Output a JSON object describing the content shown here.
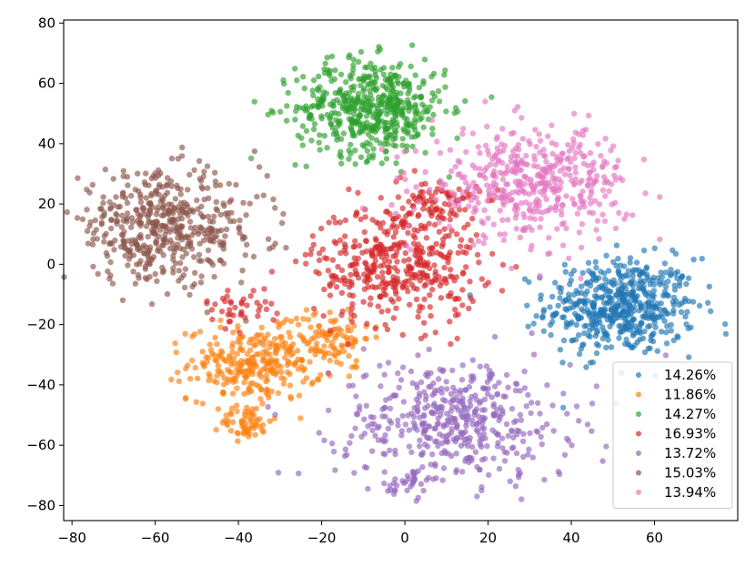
{
  "chart_data": {
    "type": "scatter",
    "title": "",
    "xlabel": "",
    "ylabel": "",
    "xlim": [
      -82,
      80
    ],
    "ylim": [
      -85,
      81
    ],
    "x_ticks": [
      -80,
      -60,
      -40,
      -20,
      0,
      20,
      40,
      60
    ],
    "y_ticks": [
      -80,
      -60,
      -40,
      -20,
      0,
      20,
      40,
      60,
      80
    ],
    "x_tick_labels": [
      "−80",
      "−60",
      "−40",
      "−20",
      "0",
      "20",
      "40",
      "60"
    ],
    "y_tick_labels": [
      "−80",
      "−60",
      "−40",
      "−20",
      "0",
      "20",
      "40",
      "60",
      "80"
    ],
    "grid": false,
    "legend_position": "lower-right",
    "series": [
      {
        "name": "14.26%",
        "color": "#1f77b4",
        "clusters": [
          {
            "cx": 52,
            "cy": -14,
            "sx": 9,
            "sy": 8,
            "n": 520
          }
        ]
      },
      {
        "name": "11.86%",
        "color": "#ff7f0e",
        "clusters": [
          {
            "cx": -36,
            "cy": -33,
            "sx": 8,
            "sy": 6,
            "n": 280
          },
          {
            "cx": -18,
            "cy": -24,
            "sx": 5,
            "sy": 5,
            "n": 90
          },
          {
            "cx": -38,
            "cy": -52,
            "sx": 3,
            "sy": 3,
            "n": 60
          }
        ]
      },
      {
        "name": "14.27%",
        "color": "#2ca02c",
        "clusters": [
          {
            "cx": -8,
            "cy": 52,
            "sx": 9,
            "sy": 8,
            "n": 520
          }
        ]
      },
      {
        "name": "16.93%",
        "color": "#d62728",
        "clusters": [
          {
            "cx": -2,
            "cy": 0,
            "sx": 10,
            "sy": 10,
            "n": 420
          },
          {
            "cx": 8,
            "cy": 20,
            "sx": 5,
            "sy": 4,
            "n": 80
          },
          {
            "cx": -40,
            "cy": -14,
            "sx": 4,
            "sy": 3,
            "n": 40
          }
        ]
      },
      {
        "name": "13.72%",
        "color": "#9467bd",
        "clusters": [
          {
            "cx": 12,
            "cy": -52,
            "sx": 14,
            "sy": 10,
            "n": 460
          },
          {
            "cx": 0,
            "cy": -72,
            "sx": 3,
            "sy": 2,
            "n": 30
          }
        ]
      },
      {
        "name": "15.03%",
        "color": "#8c564b",
        "clusters": [
          {
            "cx": -58,
            "cy": 12,
            "sx": 12,
            "sy": 9,
            "n": 500
          }
        ]
      },
      {
        "name": "13.94%",
        "color": "#e377c2",
        "clusters": [
          {
            "cx": 30,
            "cy": 27,
            "sx": 12,
            "sy": 9,
            "n": 460
          }
        ]
      }
    ]
  }
}
